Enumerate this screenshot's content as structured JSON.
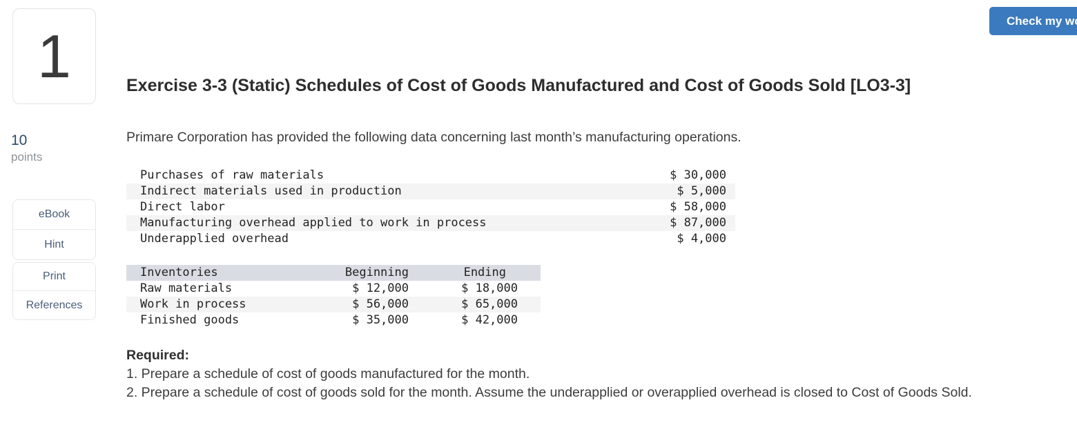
{
  "question": {
    "number": "1",
    "points_value": "10",
    "points_label": "points"
  },
  "toolbar": {
    "check_my_work_label": "Check my work"
  },
  "sidebar": {
    "buttons": [
      {
        "label": "eBook"
      },
      {
        "label": "Hint"
      },
      {
        "label": "Print"
      },
      {
        "label": "References"
      }
    ]
  },
  "main": {
    "title": "Exercise 3-3 (Static) Schedules of Cost of Goods Manufactured and Cost of Goods Sold [LO3-3]",
    "intro": "Primare Corporation has provided the following data concerning last month’s manufacturing operations.",
    "cost_table": {
      "rows": [
        {
          "label": "Purchases of raw materials",
          "amount": "$ 30,000"
        },
        {
          "label": "Indirect materials used in production",
          "amount": "$ 5,000"
        },
        {
          "label": "Direct labor",
          "amount": "$ 58,000"
        },
        {
          "label": "Manufacturing overhead applied to work in process",
          "amount": "$ 87,000"
        },
        {
          "label": "Underapplied overhead",
          "amount": "$ 4,000"
        }
      ]
    },
    "inventory_table": {
      "headers": {
        "label": "Inventories",
        "beginning": "Beginning",
        "ending": "Ending"
      },
      "rows": [
        {
          "label": "Raw materials",
          "beginning": "$ 12,000",
          "ending": "$ 18,000"
        },
        {
          "label": "Work in process",
          "beginning": "$ 56,000",
          "ending": "$ 65,000"
        },
        {
          "label": "Finished goods",
          "beginning": "$ 35,000",
          "ending": "$ 42,000"
        }
      ]
    },
    "required": {
      "heading": "Required:",
      "items": [
        "1. Prepare a schedule of cost of goods manufactured for the month.",
        "2. Prepare a schedule of cost of goods sold for the month. Assume the underapplied or overapplied overhead is closed to Cost of Goods Sold."
      ]
    }
  },
  "colors": {
    "accent": "#3b7abe",
    "table_header_bg": "#d9dde3",
    "row_stripe": "#f4f4f5",
    "link": "#4a5d79",
    "points_number": "#2d4a66"
  }
}
